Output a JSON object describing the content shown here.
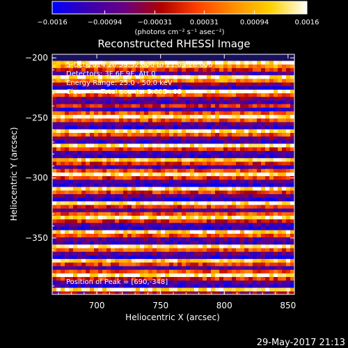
{
  "chart_data": {
    "type": "heatmap",
    "title": "Reconstructed RHESSI Image",
    "xlabel": "Heliocentric X (arcsec)",
    "ylabel": "Heliocentric Y (arcsec)",
    "xlim": [
      665,
      855
    ],
    "ylim": [
      -397,
      -197
    ],
    "x_ticks": [
      {
        "v": 700,
        "label": "700"
      },
      {
        "v": 750,
        "label": "750"
      },
      {
        "v": 800,
        "label": "800"
      },
      {
        "v": 850,
        "label": "850"
      }
    ],
    "y_ticks": [
      {
        "v": -200,
        "label": "−200"
      },
      {
        "v": -250,
        "label": "−250"
      },
      {
        "v": -300,
        "label": "−300"
      },
      {
        "v": -350,
        "label": "−350"
      }
    ],
    "colorbar": {
      "min": -0.0016,
      "max": 0.0016,
      "ticks": [
        {
          "v": -0.0016,
          "label": "−0.0016"
        },
        {
          "v": -0.00094,
          "label": "−0.00094"
        },
        {
          "v": -0.00031,
          "label": "−0.00031"
        },
        {
          "v": 0.00031,
          "label": "0.00031"
        },
        {
          "v": 0.00094,
          "label": "0.00094"
        },
        {
          "v": 0.0016,
          "label": "0.0016"
        }
      ],
      "units": "(photons cm⁻² s⁻¹ asec⁻²)",
      "colors": [
        "#0000ff",
        "#3a00b0",
        "#6a0080",
        "#b00000",
        "#ff4000",
        "#ff9000",
        "#ffd000",
        "#ffffff"
      ]
    },
    "annotations": {
      "time": "5-Oct-2014 20:59:32.000 to 21:03:28.000",
      "detectors": "Detectors: 3F 6F 9F, Att 0",
      "energy": "Energy Range: 25.0 - 50.0 keV",
      "clean": "Clean",
      "counts": "Total counts: 5.60E+03",
      "peak": "Position of Peak = [690,-348]"
    },
    "band_rows": [
      {
        "y": -204,
        "level": 0.95
      },
      {
        "y": -207,
        "level": 0.75
      },
      {
        "y": -210,
        "level": 0.5
      },
      {
        "y": -213,
        "level": 0.2
      },
      {
        "y": -216,
        "level": 0.95
      },
      {
        "y": -219,
        "level": 0.7
      },
      {
        "y": -222,
        "level": 0.35
      },
      {
        "y": -225,
        "level": 0.1
      },
      {
        "y": -228,
        "level": 0.98
      },
      {
        "y": -231,
        "level": 0.6
      },
      {
        "y": -234,
        "level": 0.3
      },
      {
        "y": -237,
        "level": 0.15
      },
      {
        "y": -240,
        "level": 0.5
      },
      {
        "y": -243,
        "level": 0.15
      },
      {
        "y": -246,
        "level": 0.6
      },
      {
        "y": -249,
        "level": 0.95
      },
      {
        "y": -252,
        "level": 0.6
      },
      {
        "y": -255,
        "level": 0.25
      },
      {
        "y": -258,
        "level": 0.1
      },
      {
        "y": -261,
        "level": 0.9
      },
      {
        "y": -264,
        "level": 0.6
      },
      {
        "y": -267,
        "level": 0.3
      },
      {
        "y": -270,
        "level": 0.15
      },
      {
        "y": -273,
        "level": 0.95
      },
      {
        "y": -276,
        "level": 0.55
      },
      {
        "y": -279,
        "level": 0.2
      },
      {
        "y": -282,
        "level": 0.1
      },
      {
        "y": -285,
        "level": 0.85
      },
      {
        "y": -288,
        "level": 0.5
      },
      {
        "y": -291,
        "level": 0.2
      },
      {
        "y": -294,
        "level": 0.6
      },
      {
        "y": -297,
        "level": 0.95
      },
      {
        "y": -300,
        "level": 0.55
      },
      {
        "y": -303,
        "level": 0.2
      },
      {
        "y": -306,
        "level": 0.1
      },
      {
        "y": -309,
        "level": 0.9
      },
      {
        "y": -312,
        "level": 0.55
      },
      {
        "y": -315,
        "level": 0.25
      },
      {
        "y": -318,
        "level": 0.1
      },
      {
        "y": -321,
        "level": 0.95
      },
      {
        "y": -324,
        "level": 0.55
      },
      {
        "y": -327,
        "level": 0.2
      },
      {
        "y": -330,
        "level": 0.6
      },
      {
        "y": -333,
        "level": 0.95
      },
      {
        "y": -336,
        "level": 0.5
      },
      {
        "y": -339,
        "level": 0.2
      },
      {
        "y": -342,
        "level": 0.1
      },
      {
        "y": -345,
        "level": 0.9
      },
      {
        "y": -348,
        "level": 0.6
      },
      {
        "y": -351,
        "level": 0.25
      },
      {
        "y": -354,
        "level": 0.15
      },
      {
        "y": -357,
        "level": 0.95
      },
      {
        "y": -360,
        "level": 0.6
      },
      {
        "y": -363,
        "level": 0.25
      },
      {
        "y": -366,
        "level": 0.1
      },
      {
        "y": -369,
        "level": 0.85
      },
      {
        "y": -372,
        "level": 0.55
      },
      {
        "y": -375,
        "level": 0.2
      },
      {
        "y": -378,
        "level": 0.6
      },
      {
        "y": -381,
        "level": 0.95
      },
      {
        "y": -384,
        "level": 0.5
      },
      {
        "y": -387,
        "level": 0.2
      },
      {
        "y": -390,
        "level": 0.1
      },
      {
        "y": -393,
        "level": 0.9
      },
      {
        "y": -396,
        "level": 0.4
      }
    ]
  },
  "footer": {
    "datetime": "29-May-2017 21:13"
  }
}
